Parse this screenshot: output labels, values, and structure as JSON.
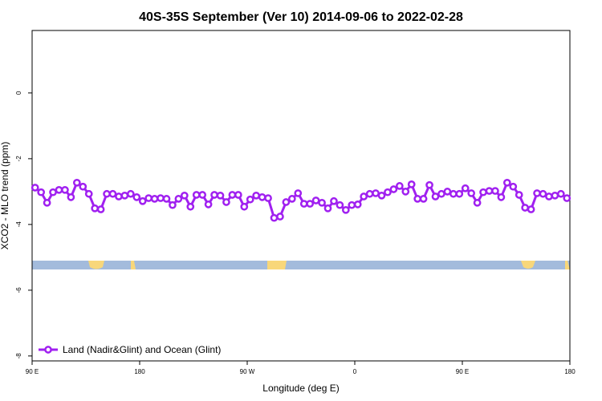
{
  "chart_data": {
    "type": "line",
    "title": "40S-35S September (Ver 10)   2014-09-06 to 2022-02-28",
    "x_label": "Longitude (deg E)",
    "y_label": "XCO2 - MLO trend (ppm)",
    "x": [
      92.5,
      97.5,
      102.5,
      107.5,
      112.5,
      117.5,
      122.5,
      127.5,
      132.5,
      137.5,
      142.5,
      147.5,
      152.5,
      157.5,
      162.5,
      167.5,
      172.5,
      177.5,
      182.5,
      187.5,
      192.5,
      197.5,
      202.5,
      207.5,
      212.5,
      217.5,
      222.5,
      227.5,
      232.5,
      237.5,
      242.5,
      247.5,
      252.5,
      257.5,
      262.5,
      267.5,
      272.5,
      277.5,
      282.5,
      287.5,
      292.5,
      297.5,
      302.5,
      307.5,
      312.5,
      317.5,
      322.5,
      327.5,
      332.5,
      337.5,
      342.5,
      347.5,
      352.5,
      357.5,
      362.5,
      367.5,
      372.5,
      377.5,
      382.5,
      387.5,
      392.5,
      397.5,
      402.5,
      407.5,
      412.5,
      417.5,
      422.5,
      427.5,
      432.5,
      437.5,
      442.5,
      447.5,
      452.5,
      457.5,
      462.5,
      467.5,
      472.5,
      477.5,
      482.5,
      487.5,
      492.5,
      497.5,
      502.5,
      507.5,
      512.5,
      517.5,
      522.5,
      527.5,
      532.5,
      537.5
    ],
    "series": [
      {
        "name": "Land (Nadir&Glint) and Ocean (Glint)",
        "color": "#a020f0",
        "values": [
          -2.88,
          -3.02,
          -3.34,
          -3.02,
          -2.95,
          -2.95,
          -3.17,
          -2.73,
          -2.85,
          -3.07,
          -3.51,
          -3.54,
          -3.07,
          -3.07,
          -3.15,
          -3.12,
          -3.07,
          -3.17,
          -3.29,
          -3.2,
          -3.22,
          -3.2,
          -3.22,
          -3.41,
          -3.22,
          -3.12,
          -3.46,
          -3.1,
          -3.1,
          -3.39,
          -3.1,
          -3.12,
          -3.32,
          -3.1,
          -3.1,
          -3.46,
          -3.24,
          -3.12,
          -3.17,
          -3.2,
          -3.8,
          -3.76,
          -3.32,
          -3.22,
          -3.05,
          -3.37,
          -3.37,
          -3.27,
          -3.34,
          -3.51,
          -3.29,
          -3.41,
          -3.56,
          -3.41,
          -3.39,
          -3.15,
          -3.07,
          -3.05,
          -3.12,
          -3.02,
          -2.93,
          -2.83,
          -3.0,
          -2.78,
          -3.22,
          -3.22,
          -2.8,
          -3.15,
          -3.07,
          -3.0,
          -3.07,
          -3.07,
          -2.9,
          -3.05,
          -3.34,
          -3.02,
          -2.98,
          -2.98,
          -3.17,
          -2.73,
          -2.85,
          -3.1,
          -3.49,
          -3.54,
          -3.05,
          -3.07,
          -3.15,
          -3.12,
          -3.07,
          -3.2
        ]
      }
    ],
    "xlim": [
      90,
      540
    ],
    "xticks": [
      {
        "value": 90,
        "label": "90 E"
      },
      {
        "value": 180,
        "label": "180"
      },
      {
        "value": 270,
        "label": "90 W"
      },
      {
        "value": 360,
        "label": "0"
      },
      {
        "value": 450,
        "label": "90 E"
      },
      {
        "value": 540,
        "label": "180"
      }
    ],
    "ylim": [
      -8.15,
      1.9
    ],
    "yticks": [
      0,
      -2,
      -4,
      -6,
      -8
    ],
    "legend": "bottom-left"
  }
}
